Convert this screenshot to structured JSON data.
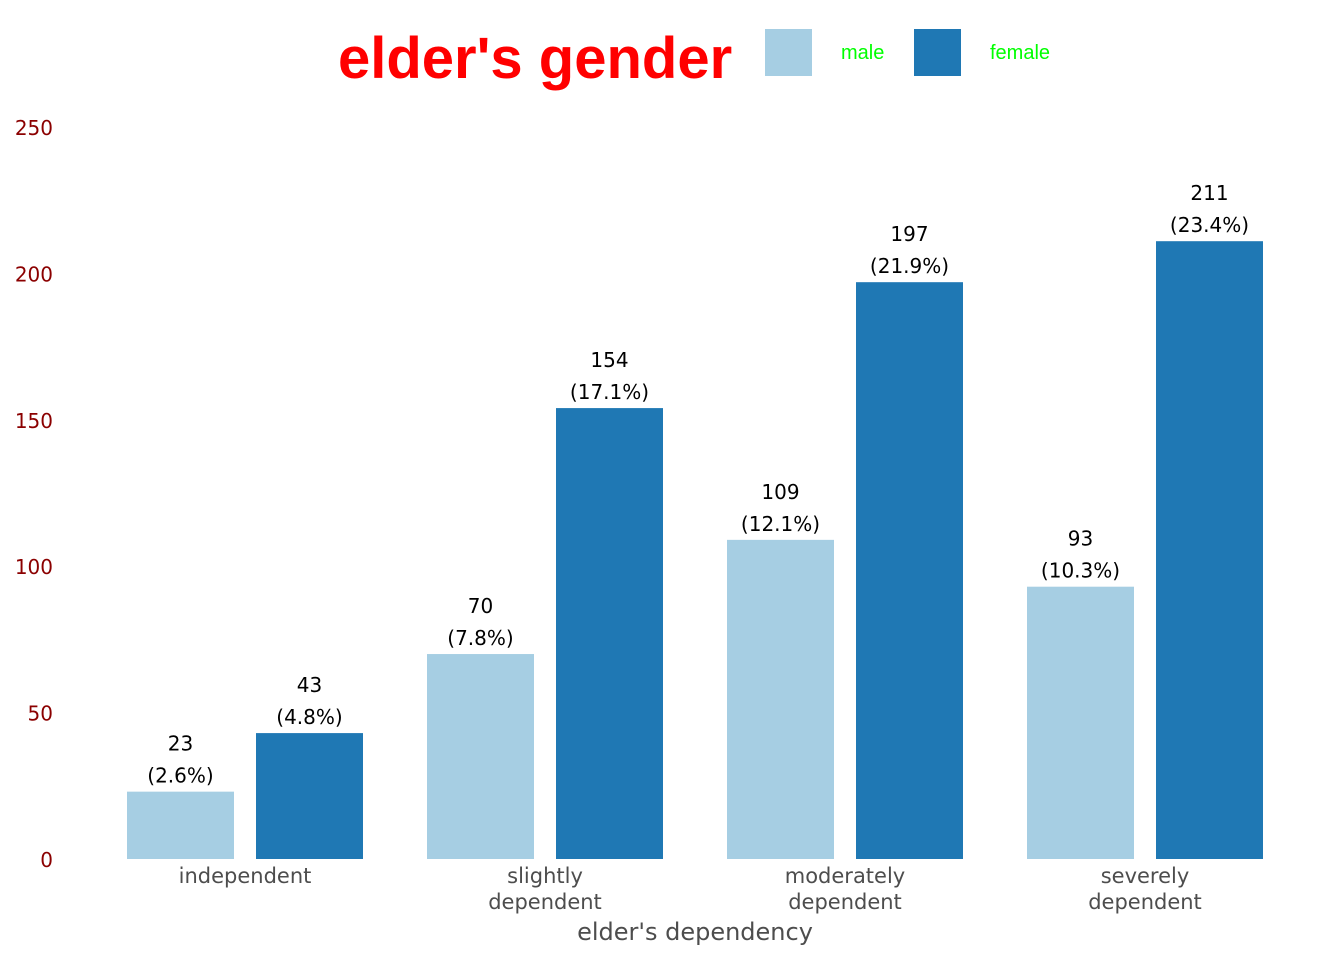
{
  "chart_data": {
    "type": "bar",
    "legend_title": "elder's gender",
    "legend_position": "top",
    "xlabel": "elder's dependency",
    "ylabel": "",
    "ylim": [
      0,
      250
    ],
    "yticks": [
      "0",
      "50",
      "100",
      "150",
      "200",
      "250"
    ],
    "grid": false,
    "categories": [
      [
        "independent"
      ],
      [
        "slightly",
        "dependent"
      ],
      [
        "moderately",
        "dependent"
      ],
      [
        "severely",
        "dependent"
      ]
    ],
    "series": [
      {
        "name": "male",
        "color": "#a6cee3",
        "values": [
          23,
          70,
          109,
          93
        ],
        "labels": [
          "(2.6%)",
          "(7.8%)",
          "(12.1%)",
          "(10.3%)"
        ]
      },
      {
        "name": "female",
        "color": "#1f78b4",
        "values": [
          43,
          154,
          197,
          211
        ],
        "labels": [
          "(4.8%)",
          "(17.1%)",
          "(21.9%)",
          "(23.4%)"
        ]
      }
    ],
    "colors": {
      "legend_title": "#ff0000",
      "legend_labels": "#00ff00",
      "y_tick_labels": "#8b0000",
      "x_tick_labels": "#4d4d4d",
      "x_axis_title": "#4d4d4d",
      "value_labels": "#000000"
    }
  }
}
